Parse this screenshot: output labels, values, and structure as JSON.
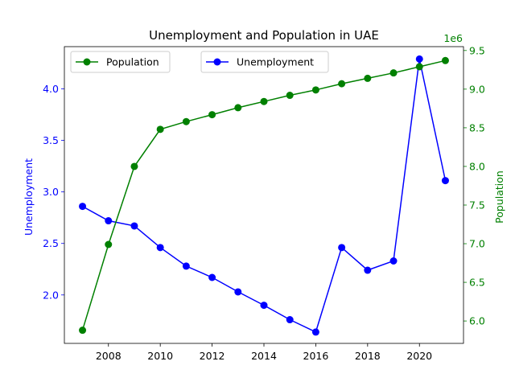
{
  "chart_data": {
    "type": "line",
    "title": "Unemployment and Population in UAE",
    "xlabel": "",
    "x": [
      2007,
      2008,
      2009,
      2010,
      2011,
      2012,
      2013,
      2014,
      2015,
      2016,
      2017,
      2018,
      2019,
      2020,
      2021
    ],
    "xlim": [
      2006.3,
      2021.7
    ],
    "x_ticks": [
      2008,
      2010,
      2012,
      2014,
      2016,
      2018,
      2020
    ],
    "y_left": {
      "label": "Unemployment",
      "color": "#0000ff",
      "lim": [
        1.53,
        4.41
      ],
      "ticks": [
        2.0,
        2.5,
        3.0,
        3.5,
        4.0
      ],
      "tick_labels": [
        "2.0",
        "2.5",
        "3.0",
        "3.5",
        "4.0"
      ]
    },
    "y_right": {
      "label": "Population",
      "color": "#008000",
      "lim": [
        5.71,
        9.55
      ],
      "ticks": [
        6.0,
        6.5,
        7.0,
        7.5,
        8.0,
        8.5,
        9.0,
        9.5
      ],
      "tick_labels": [
        "6.0",
        "6.5",
        "7.0",
        "7.5",
        "8.0",
        "8.5",
        "9.0",
        "9.5"
      ],
      "offset_text": "1e6"
    },
    "series": [
      {
        "name": "Unemployment",
        "axis": "left",
        "color": "#0000ff",
        "values": [
          2.86,
          2.72,
          2.67,
          2.46,
          2.28,
          2.17,
          2.03,
          1.9,
          1.76,
          1.64,
          2.46,
          2.24,
          2.33,
          4.29,
          3.11
        ]
      },
      {
        "name": "Population",
        "axis": "right",
        "color": "#008000",
        "values": [
          5.88,
          6.99,
          8.0,
          8.48,
          8.58,
          8.67,
          8.76,
          8.84,
          8.92,
          8.99,
          9.07,
          9.14,
          9.21,
          9.29,
          9.37
        ]
      }
    ],
    "legends": [
      {
        "label": "Population",
        "color": "#008000",
        "position": "upper-left"
      },
      {
        "label": "Unemployment",
        "color": "#0000ff",
        "position": "upper-center"
      }
    ]
  }
}
